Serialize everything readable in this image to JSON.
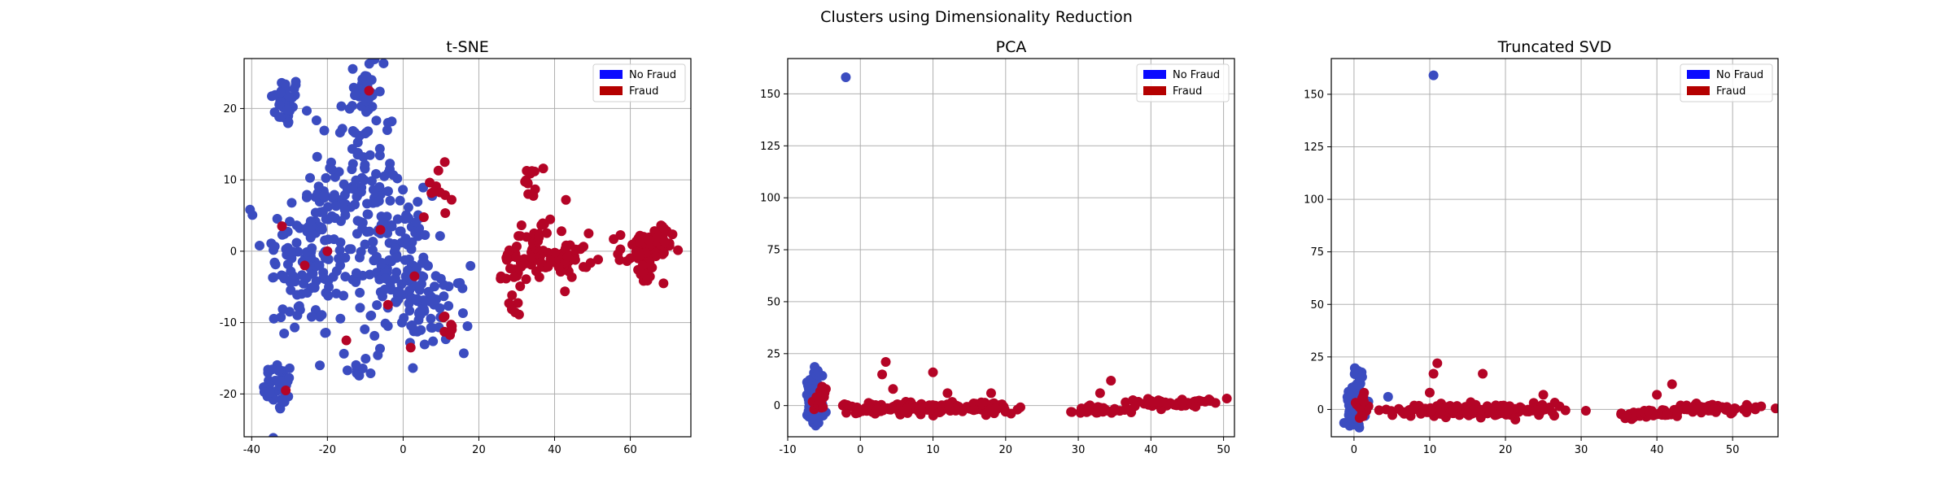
{
  "figure": {
    "suptitle": "Clusters using Dimensionality Reduction",
    "colors": {
      "no_fraud": "#3b4cc0",
      "fraud": "#b40426",
      "legend_no_fraud": "#0a0aff",
      "legend_fraud": "#b40000",
      "grid": "#b0b0b0"
    }
  },
  "chart_data": [
    {
      "type": "scatter",
      "title": "t-SNE",
      "xlabel": "",
      "ylabel": "",
      "xlim": [
        -42,
        76
      ],
      "ylim": [
        -26,
        27
      ],
      "xticks": [
        -40,
        -20,
        0,
        20,
        40,
        60
      ],
      "yticks": [
        -20,
        -10,
        0,
        10,
        20
      ],
      "grid": true,
      "legend": {
        "position": "top-right",
        "entries": [
          "No Fraud",
          "Fraud"
        ]
      },
      "clusters": [
        {
          "label": "No Fraud",
          "center": [
            -31,
            21
          ],
          "spread": [
            2,
            1.8
          ],
          "count": 40
        },
        {
          "label": "No Fraud",
          "center": [
            -33,
            -19
          ],
          "spread": [
            2,
            1.8
          ],
          "count": 40
        },
        {
          "label": "No Fraud",
          "center": [
            -25,
            -1
          ],
          "spread": [
            6,
            6
          ],
          "count": 130
        },
        {
          "label": "No Fraud",
          "center": [
            -12,
            10
          ],
          "spread": [
            5,
            7
          ],
          "count": 110
        },
        {
          "label": "No Fraud",
          "center": [
            -2,
            -2
          ],
          "spread": [
            5,
            5
          ],
          "count": 120
        },
        {
          "label": "No Fraud",
          "center": [
            7,
            -8
          ],
          "spread": [
            5,
            3
          ],
          "count": 60
        },
        {
          "label": "No Fraud",
          "center": [
            -10,
            22
          ],
          "spread": [
            2,
            2
          ],
          "count": 25
        },
        {
          "label": "No Fraud",
          "center": [
            -12,
            -16
          ],
          "spread": [
            2,
            1
          ],
          "count": 10
        },
        {
          "label": "Fraud",
          "center": [
            34,
            10
          ],
          "spread": [
            1,
            1.2
          ],
          "count": 12
        },
        {
          "label": "Fraud",
          "center": [
            32,
            -1
          ],
          "spread": [
            3,
            1.5
          ],
          "count": 45
        },
        {
          "label": "Fraud",
          "center": [
            44,
            -1
          ],
          "spread": [
            2.5,
            1.2
          ],
          "count": 40
        },
        {
          "label": "Fraud",
          "center": [
            36,
            3
          ],
          "spread": [
            2,
            1
          ],
          "count": 12
        },
        {
          "label": "Fraud",
          "center": [
            29,
            -6
          ],
          "spread": [
            1.5,
            1.5
          ],
          "count": 10
        },
        {
          "label": "Fraud",
          "center": [
            64,
            0
          ],
          "spread": [
            3.5,
            1.5
          ],
          "count": 55
        },
        {
          "label": "Fraud",
          "center": [
            68,
            2.5
          ],
          "spread": [
            1.5,
            0.7
          ],
          "count": 15
        },
        {
          "label": "Fraud",
          "center": [
            64,
            -3
          ],
          "spread": [
            1.5,
            0.7
          ],
          "count": 10
        },
        {
          "label": "Fraud",
          "center": [
            12,
            -11
          ],
          "spread": [
            2,
            1
          ],
          "count": 8
        },
        {
          "label": "Fraud",
          "center": [
            9,
            9
          ],
          "spread": [
            2,
            2
          ],
          "count": 10
        }
      ],
      "points": [
        {
          "label": "No Fraud",
          "x": -22,
          "y": -16
        },
        {
          "label": "No Fraud",
          "x": 17,
          "y": -10.5
        },
        {
          "label": "No Fraud",
          "x": -4,
          "y": 18
        },
        {
          "label": "Fraud",
          "x": 11,
          "y": 12.5
        },
        {
          "label": "Fraud",
          "x": 43,
          "y": 7.2
        },
        {
          "label": "Fraud",
          "x": 49,
          "y": 2.5
        },
        {
          "label": "Fraud",
          "x": -9,
          "y": 22.5
        },
        {
          "label": "Fraud",
          "x": -31,
          "y": -19.5
        },
        {
          "label": "Fraud",
          "x": -32,
          "y": 3.5
        },
        {
          "label": "Fraud",
          "x": -26,
          "y": -2
        },
        {
          "label": "Fraud",
          "x": -15,
          "y": -12.5
        },
        {
          "label": "Fraud",
          "x": -20,
          "y": 0
        },
        {
          "label": "Fraud",
          "x": 3,
          "y": -3.5
        },
        {
          "label": "Fraud",
          "x": -4,
          "y": -7.5
        },
        {
          "label": "Fraud",
          "x": 2,
          "y": -13.5
        },
        {
          "label": "Fraud",
          "x": -6,
          "y": 3
        }
      ]
    },
    {
      "type": "scatter",
      "title": "PCA",
      "xlabel": "",
      "ylabel": "",
      "xlim": [
        -10,
        51.5
      ],
      "ylim": [
        -15,
        167
      ],
      "xticks": [
        -10,
        0,
        10,
        20,
        30,
        40,
        50
      ],
      "yticks": [
        0,
        25,
        50,
        75,
        100,
        125,
        150
      ],
      "grid": true,
      "legend": {
        "position": "top-right",
        "entries": [
          "No Fraud",
          "Fraud"
        ]
      },
      "clusters": [
        {
          "label": "No Fraud",
          "center": [
            -6.3,
            2
          ],
          "spread": [
            0.5,
            5
          ],
          "count": 160
        },
        {
          "label": "No Fraud",
          "center": [
            -6,
            16
          ],
          "spread": [
            0.5,
            2
          ],
          "count": 12
        },
        {
          "label": "Fraud",
          "center": [
            -5.5,
            3
          ],
          "spread": [
            0.6,
            3
          ],
          "count": 15
        },
        {
          "label": "Fraud",
          "center": [
            6,
            -1
          ],
          "spread": [
            4,
            1.5
          ],
          "count": 120
        },
        {
          "label": "Fraud",
          "center": [
            16,
            -1
          ],
          "spread": [
            3,
            1.5
          ],
          "count": 60
        },
        {
          "label": "Fraud",
          "center": [
            33,
            -2
          ],
          "spread": [
            2,
            1
          ],
          "count": 40
        },
        {
          "label": "Fraud",
          "center": [
            43,
            1
          ],
          "spread": [
            3,
            1
          ],
          "count": 60
        }
      ],
      "points": [
        {
          "label": "No Fraud",
          "x": -2,
          "y": 158
        },
        {
          "label": "Fraud",
          "x": 3.5,
          "y": 21
        },
        {
          "label": "Fraud",
          "x": 3,
          "y": 15
        },
        {
          "label": "Fraud",
          "x": 10,
          "y": 16
        },
        {
          "label": "Fraud",
          "x": 4.5,
          "y": 8
        },
        {
          "label": "Fraud",
          "x": 12,
          "y": 6
        },
        {
          "label": "Fraud",
          "x": 18,
          "y": 6
        },
        {
          "label": "Fraud",
          "x": 34.5,
          "y": 12
        },
        {
          "label": "Fraud",
          "x": 33,
          "y": 6
        },
        {
          "label": "Fraud",
          "x": 48,
          "y": 3
        },
        {
          "label": "Fraud",
          "x": 29,
          "y": -3
        }
      ]
    },
    {
      "type": "scatter",
      "title": "Truncated SVD",
      "xlabel": "",
      "ylabel": "",
      "xlim": [
        -3,
        56
      ],
      "ylim": [
        -13,
        167
      ],
      "xticks": [
        0,
        10,
        20,
        30,
        40,
        50
      ],
      "yticks": [
        0,
        25,
        50,
        75,
        100,
        125,
        150
      ],
      "grid": true,
      "legend": {
        "position": "top-right",
        "entries": [
          "No Fraud",
          "Fraud"
        ]
      },
      "clusters": [
        {
          "label": "No Fraud",
          "center": [
            0.3,
            2
          ],
          "spread": [
            0.5,
            4
          ],
          "count": 160
        },
        {
          "label": "No Fraud",
          "center": [
            0.6,
            16
          ],
          "spread": [
            0.4,
            2
          ],
          "count": 12
        },
        {
          "label": "Fraud",
          "center": [
            1,
            3
          ],
          "spread": [
            0.6,
            3
          ],
          "count": 15
        },
        {
          "label": "Fraud",
          "center": [
            13,
            -0.5
          ],
          "spread": [
            4,
            1.5
          ],
          "count": 120
        },
        {
          "label": "Fraud",
          "center": [
            22,
            -0.5
          ],
          "spread": [
            3,
            1.5
          ],
          "count": 60
        },
        {
          "label": "Fraud",
          "center": [
            39,
            -2
          ],
          "spread": [
            2,
            1
          ],
          "count": 40
        },
        {
          "label": "Fraud",
          "center": [
            48,
            0.5
          ],
          "spread": [
            3,
            1
          ],
          "count": 60
        }
      ],
      "points": [
        {
          "label": "No Fraud",
          "x": 10.5,
          "y": 159
        },
        {
          "label": "No Fraud",
          "x": 4.5,
          "y": 6
        },
        {
          "label": "Fraud",
          "x": 11,
          "y": 22
        },
        {
          "label": "Fraud",
          "x": 10.5,
          "y": 17
        },
        {
          "label": "Fraud",
          "x": 17,
          "y": 17
        },
        {
          "label": "Fraud",
          "x": 10,
          "y": 8
        },
        {
          "label": "Fraud",
          "x": 25,
          "y": 7
        },
        {
          "label": "Fraud",
          "x": 42,
          "y": 12
        },
        {
          "label": "Fraud",
          "x": 40,
          "y": 7
        },
        {
          "label": "Fraud",
          "x": 53,
          "y": 0
        },
        {
          "label": "Fraud",
          "x": 36,
          "y": -3
        }
      ]
    }
  ]
}
